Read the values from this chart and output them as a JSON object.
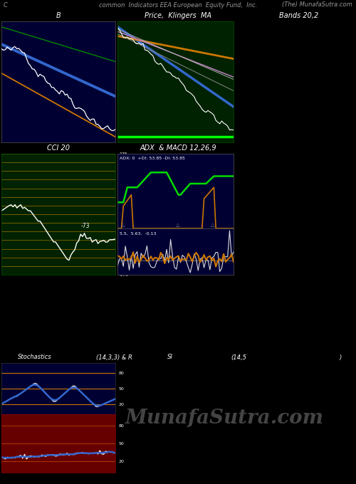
{
  "title_text": "common  Indicators EEA European  Equity Fund,  Inc.",
  "title_left": "C",
  "title_right": "(The) MunafaSutra.com",
  "bg_color": "#000000",
  "panel1_bg": "#000033",
  "panel2_bg": "#002200",
  "panel3_bg": "#002200",
  "panel4_bg": "#000033",
  "panel5a_bg": "#000033",
  "panel5b_bg": "#660000",
  "panel1_title": "B",
  "panel2_title": "Price,  Klingers  MA",
  "panel2_title2": "Bands 20,2",
  "panel3_title": "CCI 20",
  "panel4_title": "ADX  & MACD 12,26,9",
  "panel5_title_left": "Stochastics",
  "panel5_title_right": "(14,3,3) & R",
  "panel6_title_left": "SI",
  "panel6_title_mid": "(14,5",
  "panel6_title_right": ")",
  "watermark": "MunafaSutra.com",
  "n_points": 60,
  "cci_levels": [
    175,
    150,
    125,
    100,
    75,
    50,
    25,
    0,
    -25,
    -50,
    -75,
    -100,
    -125,
    -150,
    -175
  ],
  "adx_label": "ADX: 0  +DI: 53.85 -DI: 53.85",
  "macd_label": "5.5,  5.63,  -0.13"
}
